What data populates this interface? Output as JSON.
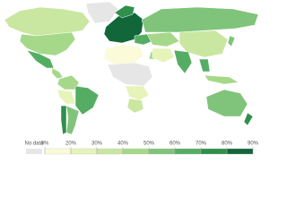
{
  "legend": {
    "no_data_label": "No data",
    "no_data_color": "#e6e6e6",
    "ticks": [
      {
        "value": 0,
        "label": "0%"
      },
      {
        "value": 20,
        "label": "20%"
      },
      {
        "value": 30,
        "label": "30%"
      },
      {
        "value": 40,
        "label": "40%"
      },
      {
        "value": 50,
        "label": "50%"
      },
      {
        "value": 60,
        "label": "60%"
      },
      {
        "value": 70,
        "label": "70%"
      },
      {
        "value": 80,
        "label": "80%"
      },
      {
        "value": 90,
        "label": "90%"
      }
    ],
    "colors": [
      "#fbfbd9",
      "#e6f3b9",
      "#c9e7a0",
      "#a6d88a",
      "#7fc47a",
      "#55ad63",
      "#2f8f4c",
      "#12673a"
    ]
  }
}
